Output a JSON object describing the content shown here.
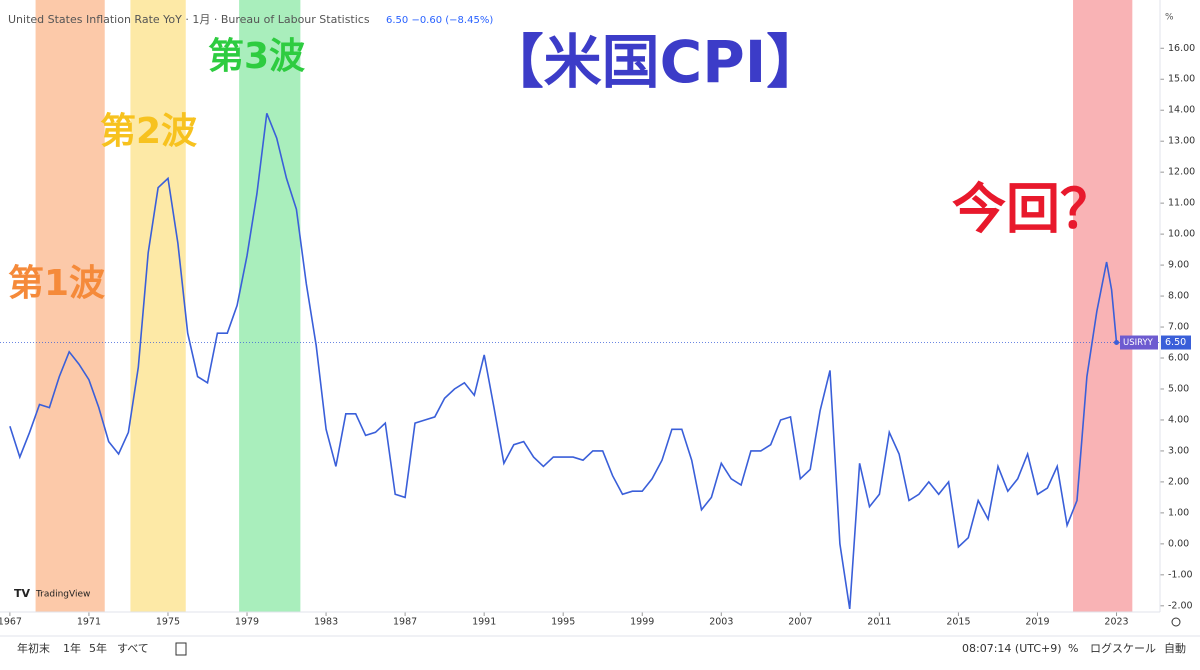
{
  "header": {
    "title": "United States Inflation Rate YoY · 1月 · Bureau of Labour Statistics",
    "quote": "6.50 −0.60 (−8.45%)"
  },
  "logo": "TradingView",
  "toolbar": {
    "ranges": [
      "年初末",
      "1年",
      "5年",
      "すべて"
    ],
    "time": "08:07:14 (UTC+9)",
    "options": [
      "%",
      "ログスケール",
      "自動"
    ]
  },
  "chart_data": {
    "type": "line",
    "title": "【米国CPI】",
    "y_unit": "%",
    "x": [
      1967,
      1967.5,
      1968,
      1968.5,
      1969,
      1969.5,
      1970,
      1970.5,
      1971,
      1971.5,
      1972,
      1972.5,
      1973,
      1973.5,
      1974,
      1974.5,
      1975,
      1975.5,
      1976,
      1976.5,
      1977,
      1977.5,
      1978,
      1978.5,
      1979,
      1979.5,
      1980,
      1980.5,
      1981,
      1981.5,
      1982,
      1982.5,
      1983,
      1983.5,
      1984,
      1984.5,
      1985,
      1985.5,
      1986,
      1986.5,
      1987,
      1987.5,
      1988,
      1988.5,
      1989,
      1989.5,
      1990,
      1990.5,
      1991,
      1991.5,
      1992,
      1992.5,
      1993,
      1993.5,
      1994,
      1994.5,
      1995,
      1995.5,
      1996,
      1996.5,
      1997,
      1997.5,
      1998,
      1998.5,
      1999,
      1999.5,
      2000,
      2000.5,
      2001,
      2001.5,
      2002,
      2002.5,
      2003,
      2003.5,
      2004,
      2004.5,
      2005,
      2005.5,
      2006,
      2006.5,
      2007,
      2007.5,
      2008,
      2008.5,
      2009,
      2009.5,
      2010,
      2010.5,
      2011,
      2011.5,
      2012,
      2012.5,
      2013,
      2013.5,
      2014,
      2014.5,
      2015,
      2015.5,
      2016,
      2016.5,
      2017,
      2017.5,
      2018,
      2018.5,
      2019,
      2019.5,
      2020,
      2020.5,
      2021,
      2021.5,
      2022,
      2022.5,
      2022.75,
      2023
    ],
    "series": [
      {
        "name": "USIRYY",
        "color": "#3a5fd9",
        "values": [
          3.8,
          2.8,
          3.6,
          4.5,
          4.4,
          5.4,
          6.2,
          5.8,
          5.3,
          4.4,
          3.3,
          2.9,
          3.6,
          5.7,
          9.4,
          11.5,
          11.8,
          9.7,
          6.8,
          5.4,
          5.2,
          6.8,
          6.8,
          7.7,
          9.3,
          11.3,
          13.9,
          13.1,
          11.8,
          10.8,
          8.4,
          6.4,
          3.7,
          2.5,
          4.2,
          4.2,
          3.5,
          3.6,
          3.9,
          1.6,
          1.5,
          3.9,
          4.0,
          4.1,
          4.7,
          5.0,
          5.2,
          4.8,
          6.1,
          4.4,
          2.6,
          3.2,
          3.3,
          2.8,
          2.5,
          2.8,
          2.8,
          2.8,
          2.7,
          3.0,
          3.0,
          2.2,
          1.6,
          1.7,
          1.7,
          2.1,
          2.7,
          3.7,
          3.7,
          2.7,
          1.1,
          1.5,
          2.6,
          2.1,
          1.9,
          3.0,
          3.0,
          3.2,
          4.0,
          4.1,
          2.1,
          2.4,
          4.3,
          5.6,
          0.0,
          -2.1,
          2.6,
          1.2,
          1.6,
          3.6,
          2.9,
          1.4,
          1.6,
          2.0,
          1.6,
          2.0,
          -0.1,
          0.2,
          1.4,
          0.8,
          2.5,
          1.7,
          2.1,
          2.9,
          1.6,
          1.8,
          2.5,
          0.6,
          1.4,
          5.4,
          7.5,
          9.1,
          8.2,
          6.5
        ]
      }
    ],
    "price_tag": "6.50",
    "xlim": [
      1966.5,
      2025.2
    ],
    "ylim": [
      -2.2,
      17.3
    ],
    "xticks": [
      1967,
      1971,
      1975,
      1979,
      1983,
      1987,
      1991,
      1995,
      1999,
      2003,
      2007,
      2011,
      2015,
      2019,
      2023
    ],
    "yticks": [
      {
        "value": -2,
        "label": "-2.00"
      },
      {
        "value": -1,
        "label": "-1.00"
      },
      {
        "value": 0,
        "label": "0.00"
      },
      {
        "value": 1,
        "label": "1.00"
      },
      {
        "value": 2,
        "label": "2.00"
      },
      {
        "value": 3,
        "label": "3.00"
      },
      {
        "value": 4,
        "label": "4.00"
      },
      {
        "value": 5,
        "label": "5.00"
      },
      {
        "value": 6,
        "label": "6.00"
      },
      {
        "value": 7,
        "label": "7.00"
      },
      {
        "value": 8,
        "label": "8.00"
      },
      {
        "value": 9,
        "label": "9.00"
      },
      {
        "value": 10,
        "label": "10.00"
      },
      {
        "value": 11,
        "label": "11.00"
      },
      {
        "value": 12,
        "label": "12.00"
      },
      {
        "value": 13,
        "label": "13.00"
      },
      {
        "value": 14,
        "label": "14.00"
      },
      {
        "value": 15,
        "label": "15.00"
      },
      {
        "value": 16,
        "label": "16.00"
      }
    ],
    "bands": [
      {
        "label": "第1波",
        "start": 1968.3,
        "end": 1971.8,
        "color": "#fcc9a9",
        "text_color": "#f58a3a"
      },
      {
        "label": "第2波",
        "start": 1973.1,
        "end": 1975.9,
        "color": "#fde9a6",
        "text_color": "#f7c21f"
      },
      {
        "label": "第3波",
        "start": 1978.6,
        "end": 1981.7,
        "color": "#a9eebc",
        "text_color": "#2ecc40"
      },
      {
        "label": "今回？",
        "start": 2020.8,
        "end": 2023.8,
        "color": "#f9b3b5",
        "text_color": "#e8192c"
      }
    ]
  }
}
